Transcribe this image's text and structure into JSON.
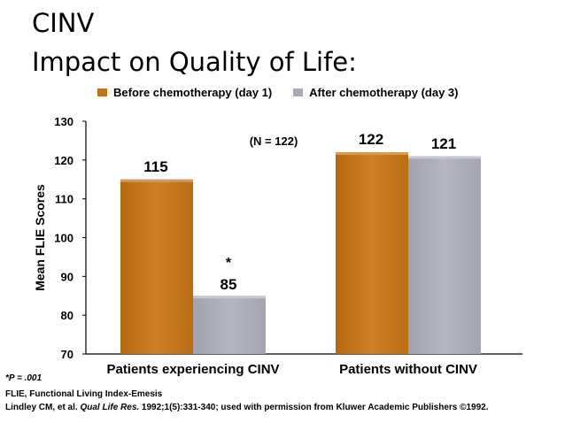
{
  "slide": {
    "title_line1": "CINV",
    "title_line2": "Impact on Quality of Life:"
  },
  "chart_data": {
    "type": "bar",
    "categories": [
      "Patients experiencing CINV",
      "Patients without CINV"
    ],
    "series": [
      {
        "name": "Before chemotherapy (day 1)",
        "values": [
          115,
          122
        ],
        "color": "#C0741A"
      },
      {
        "name": "After chemotherapy (day 3)",
        "values": [
          85,
          121
        ],
        "color": "#A9A9B6"
      }
    ],
    "data_labels": [
      [
        "115",
        "85"
      ],
      [
        "122",
        "121"
      ]
    ],
    "ylabel": "Mean FLIE Scores",
    "ylim": [
      70,
      130
    ],
    "yticks": [
      70,
      80,
      90,
      100,
      110,
      120,
      130
    ],
    "annotations": {
      "n_label": "(N = 122)",
      "significance_marker": "*"
    },
    "legend_position": "top"
  },
  "footnotes": {
    "p_value": "*P = .001",
    "abbreviation": "FLIE, Functional Living Index-Emesis",
    "citation_pre": "Lindley CM, et al. ",
    "citation_journal": "Qual Life Res.",
    "citation_post": " 1992;1(5):331-340; used with permission from Kluwer Academic Publishers ©1992."
  }
}
